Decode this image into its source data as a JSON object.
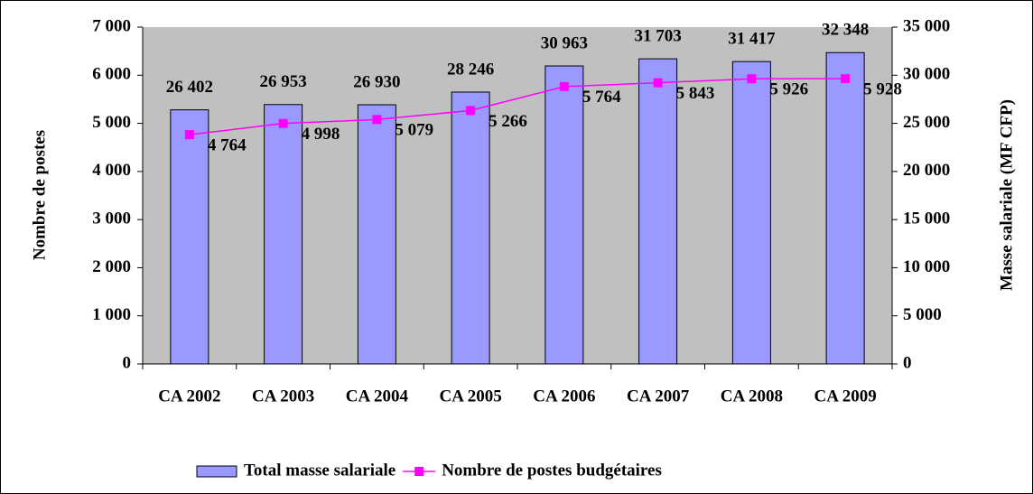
{
  "chart_data": {
    "type": "bar_line",
    "categories": [
      "CA 2002",
      "CA 2003",
      "CA 2004",
      "CA 2005",
      "CA 2006",
      "CA 2007",
      "CA 2008",
      "CA 2009"
    ],
    "series": [
      {
        "name": "Total masse salariale",
        "type": "bar",
        "axis": "y2",
        "color": "#9999ff",
        "values": [
          26402,
          26953,
          26930,
          28246,
          30963,
          31703,
          31417,
          32348
        ],
        "value_labels": [
          "26 402",
          "26 953",
          "26 930",
          "28 246",
          "30 963",
          "31 703",
          "31 417",
          "32 348"
        ]
      },
      {
        "name": "Nombre de postes budgétaires",
        "type": "line",
        "axis": "y",
        "color": "#ff00ff",
        "values": [
          4764,
          4998,
          5079,
          5266,
          5764,
          5843,
          5926,
          5928
        ],
        "value_labels": [
          "4 764",
          "4 998",
          "5 079",
          "5 266",
          "5 764",
          "5 843",
          "5 926",
          "5 928"
        ]
      }
    ],
    "ylabel": "Nombre de postes",
    "y2label": "Masse salariale (MF CFP)",
    "ylim": [
      0,
      7000
    ],
    "yticks": [
      0,
      {
        "value": 1000,
        "label": "1 000"
      },
      {
        "value": 2000,
        "label": "2 000"
      },
      {
        "value": 3000,
        "label": "3 000"
      },
      {
        "value": 4000,
        "label": "4 000"
      },
      {
        "value": 5000,
        "label": "5 000"
      },
      {
        "value": 6000,
        "label": "6 000"
      },
      {
        "value": 7000,
        "label": "7 000"
      }
    ],
    "y2lim": [
      0,
      35000
    ],
    "y2ticks": [
      0,
      {
        "value": 5000,
        "label": "5 000"
      },
      {
        "value": 10000,
        "label": "10 000"
      },
      {
        "value": 15000,
        "label": "15 000"
      },
      {
        "value": 20000,
        "label": "20 000"
      },
      {
        "value": 25000,
        "label": "25 000"
      },
      {
        "value": 30000,
        "label": "30 000"
      },
      {
        "value": 35000,
        "label": "35 000"
      }
    ],
    "legend": "bottom"
  }
}
